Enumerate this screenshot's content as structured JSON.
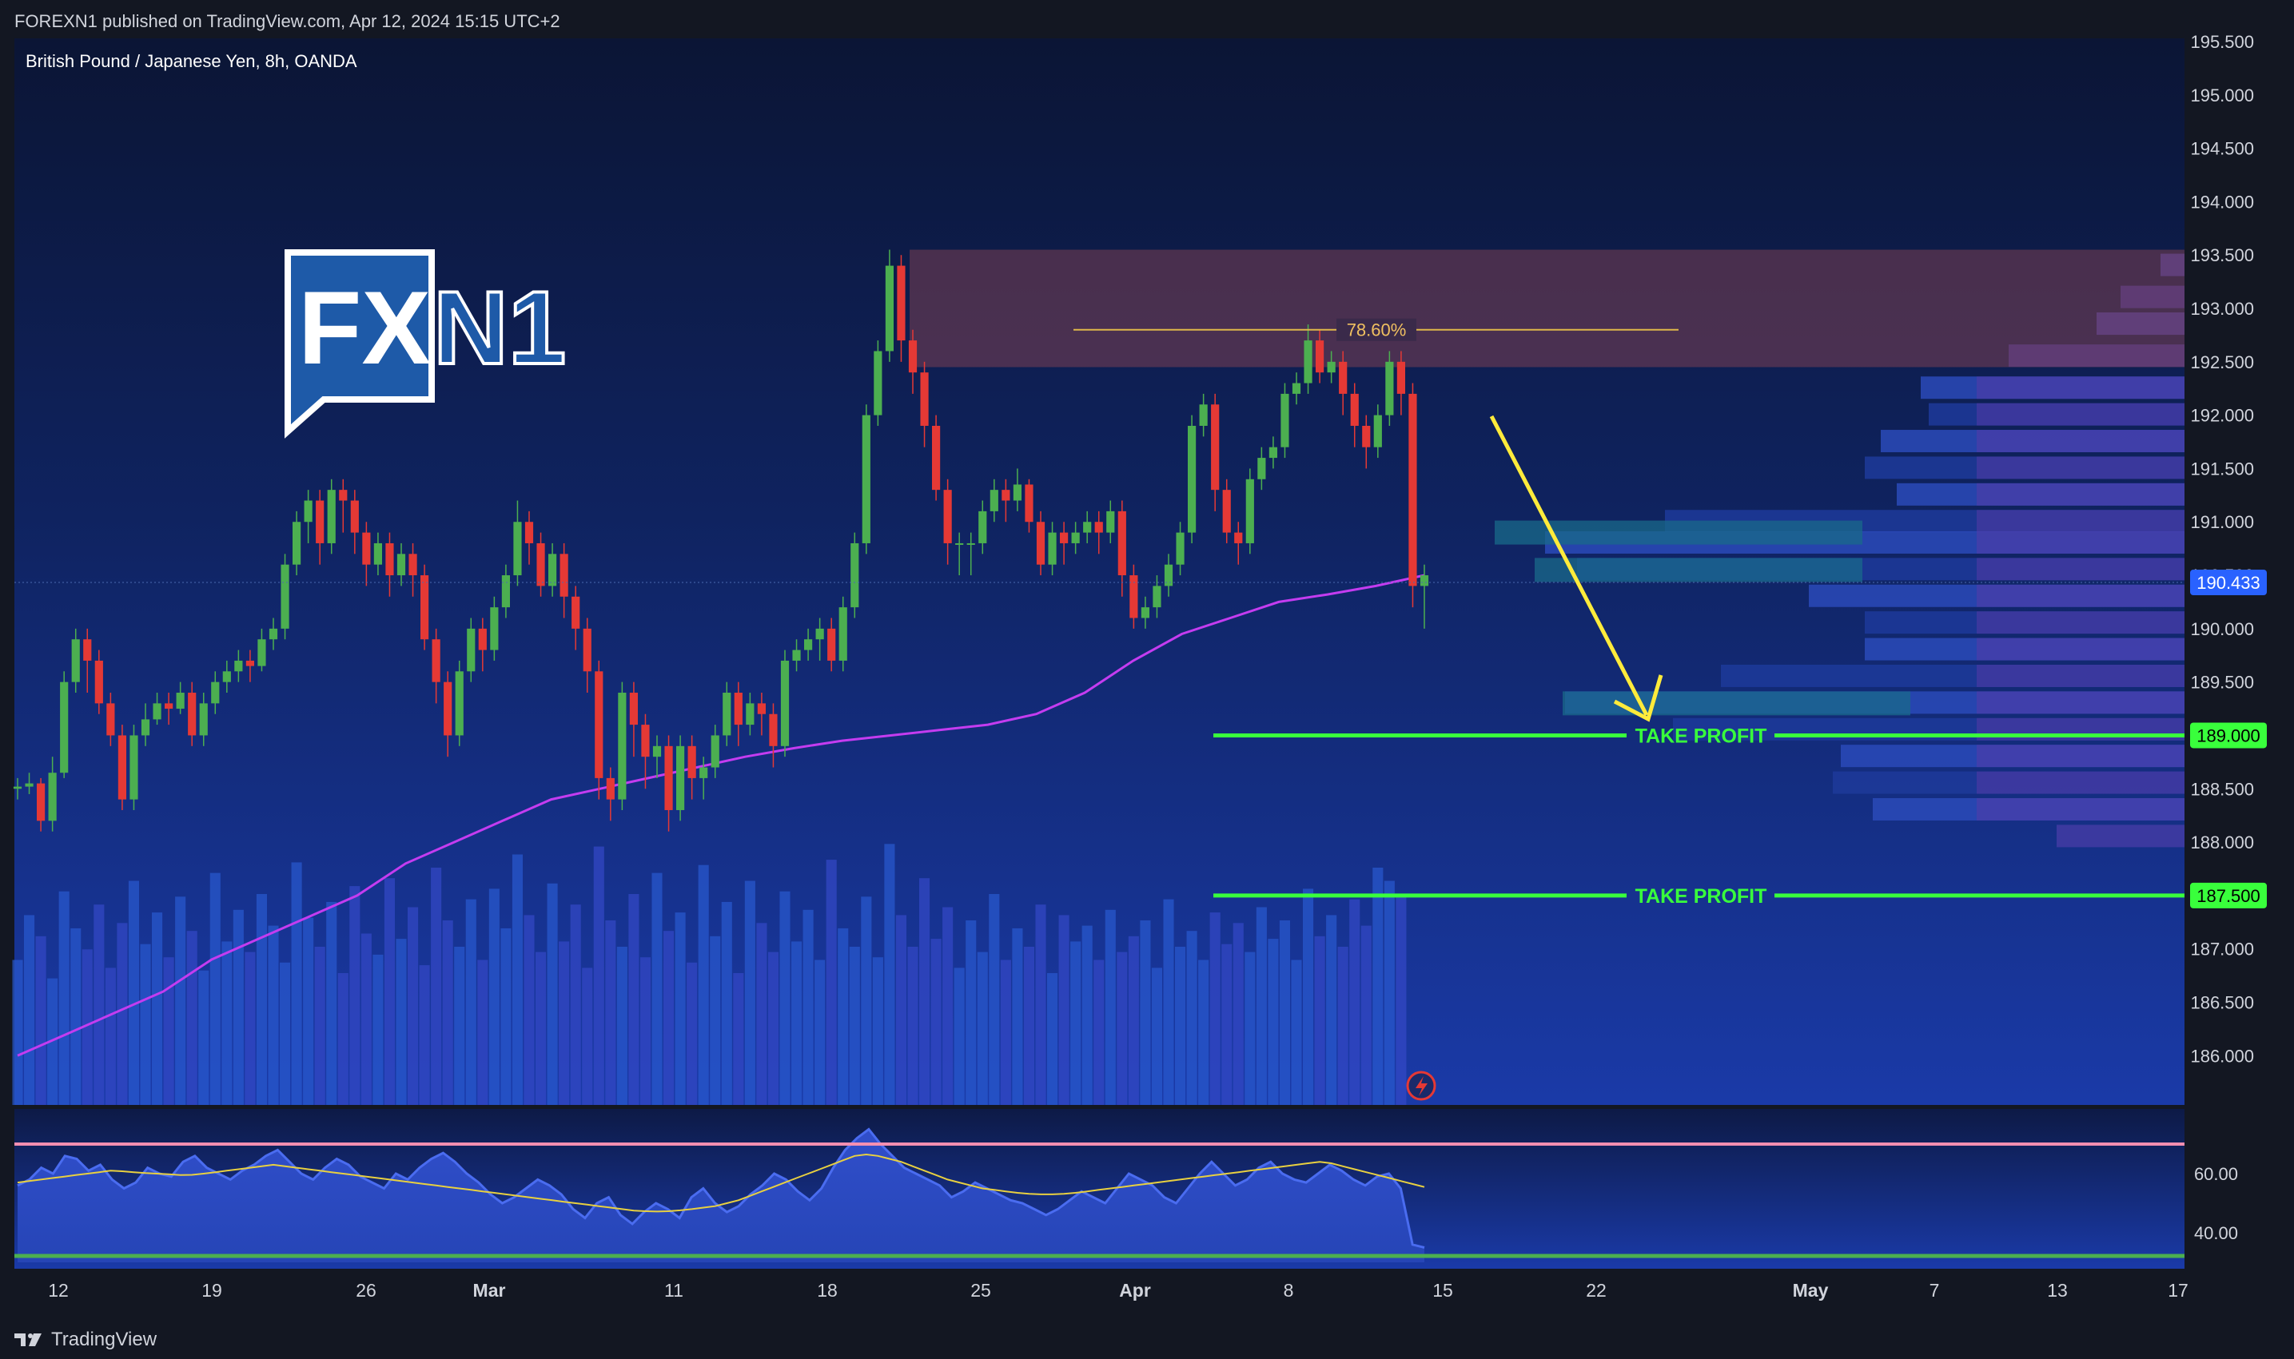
{
  "header": {
    "published": "FOREXN1 published on TradingView.com, Apr 12, 2024 15:15 UTC+2",
    "symbol": "British Pound / Japanese Yen, 8h, OANDA"
  },
  "footer": {
    "brand": "TradingView"
  },
  "logo": {
    "text_fx": "FX",
    "text_n1": "N1"
  },
  "colors": {
    "bull": "#4caf50",
    "bear": "#e53935",
    "ma": "#c43cf0",
    "tp": "#39ff3c",
    "arrow": "#ffeb3b",
    "zone": "#7b3f52",
    "rsi_upper": "#f48fb1",
    "rsi_lower": "#4caf50",
    "price_tag": "#2962ff"
  },
  "chart_data": [
    {
      "type": "candlestick",
      "yticks": [
        "195.500",
        "195.000",
        "194.500",
        "194.000",
        "193.500",
        "193.000",
        "192.500",
        "192.000",
        "191.500",
        "191.000",
        "190.500",
        "190.000",
        "189.500",
        "189.000",
        "188.500",
        "188.000",
        "187.500",
        "187.000",
        "186.500",
        "186.000"
      ],
      "ylim": [
        185.8,
        195.5
      ],
      "xticks": [
        "12",
        "19",
        "26",
        "Mar",
        "11",
        "18",
        "25",
        "Apr",
        "8",
        "15",
        "22",
        "May",
        "7",
        "13",
        "17"
      ],
      "current_price": "190.433",
      "fib_label": "78.60%",
      "fib_level": 192.8,
      "supply_zone": [
        192.45,
        193.55
      ],
      "take_profit": [
        {
          "label": "TAKE PROFIT",
          "price": "189.000",
          "value": 189.0
        },
        {
          "label": "TAKE PROFIT",
          "price": "187.500",
          "value": 187.5
        }
      ],
      "candles": [
        [
          188.5,
          188.52,
          188.4,
          188.6
        ],
        [
          188.52,
          188.55,
          188.45,
          188.65
        ],
        [
          188.55,
          188.2,
          188.1,
          188.6
        ],
        [
          188.2,
          188.65,
          188.1,
          188.8
        ],
        [
          188.65,
          189.5,
          188.6,
          189.6
        ],
        [
          189.5,
          189.9,
          189.4,
          190.0
        ],
        [
          189.9,
          189.7,
          189.4,
          190.0
        ],
        [
          189.7,
          189.3,
          189.2,
          189.8
        ],
        [
          189.3,
          189.0,
          188.9,
          189.4
        ],
        [
          189.0,
          188.4,
          188.3,
          189.1
        ],
        [
          188.4,
          189.0,
          188.3,
          189.1
        ],
        [
          189.0,
          189.15,
          188.9,
          189.3
        ],
        [
          189.15,
          189.3,
          189.1,
          189.4
        ],
        [
          189.3,
          189.25,
          189.1,
          189.4
        ],
        [
          189.25,
          189.4,
          189.2,
          189.5
        ],
        [
          189.4,
          189.0,
          188.9,
          189.5
        ],
        [
          189.0,
          189.3,
          188.9,
          189.4
        ],
        [
          189.3,
          189.5,
          189.2,
          189.6
        ],
        [
          189.5,
          189.6,
          189.4,
          189.7
        ],
        [
          189.6,
          189.7,
          189.5,
          189.8
        ],
        [
          189.7,
          189.65,
          189.5,
          189.8
        ],
        [
          189.65,
          189.9,
          189.6,
          190.0
        ],
        [
          189.9,
          190.0,
          189.8,
          190.1
        ],
        [
          190.0,
          190.6,
          189.9,
          190.7
        ],
        [
          190.6,
          191.0,
          190.5,
          191.1
        ],
        [
          191.0,
          191.2,
          190.8,
          191.3
        ],
        [
          191.2,
          190.8,
          190.6,
          191.3
        ],
        [
          190.8,
          191.3,
          190.7,
          191.4
        ],
        [
          191.3,
          191.2,
          190.9,
          191.4
        ],
        [
          191.2,
          190.9,
          190.7,
          191.3
        ],
        [
          190.9,
          190.6,
          190.4,
          191.0
        ],
        [
          190.6,
          190.8,
          190.5,
          190.9
        ],
        [
          190.8,
          190.5,
          190.3,
          190.9
        ],
        [
          190.5,
          190.7,
          190.4,
          190.8
        ],
        [
          190.7,
          190.5,
          190.3,
          190.8
        ],
        [
          190.5,
          189.9,
          189.8,
          190.6
        ],
        [
          189.9,
          189.5,
          189.3,
          190.0
        ],
        [
          189.5,
          189.0,
          188.8,
          189.6
        ],
        [
          189.0,
          189.6,
          188.9,
          189.7
        ],
        [
          189.6,
          190.0,
          189.5,
          190.1
        ],
        [
          190.0,
          189.8,
          189.6,
          190.1
        ],
        [
          189.8,
          190.2,
          189.7,
          190.3
        ],
        [
          190.2,
          190.5,
          190.1,
          190.6
        ],
        [
          190.5,
          191.0,
          190.4,
          191.2
        ],
        [
          191.0,
          190.8,
          190.6,
          191.1
        ],
        [
          190.8,
          190.4,
          190.3,
          190.9
        ],
        [
          190.4,
          190.7,
          190.3,
          190.8
        ],
        [
          190.7,
          190.3,
          190.1,
          190.8
        ],
        [
          190.3,
          190.0,
          189.8,
          190.4
        ],
        [
          190.0,
          189.6,
          189.4,
          190.1
        ],
        [
          189.6,
          188.6,
          188.4,
          189.7
        ],
        [
          188.6,
          188.4,
          188.2,
          188.7
        ],
        [
          188.4,
          189.4,
          188.3,
          189.5
        ],
        [
          189.4,
          189.1,
          188.8,
          189.5
        ],
        [
          189.1,
          188.8,
          188.5,
          189.2
        ],
        [
          188.8,
          188.9,
          188.6,
          189.0
        ],
        [
          188.9,
          188.3,
          188.1,
          189.0
        ],
        [
          188.3,
          188.9,
          188.2,
          189.0
        ],
        [
          188.9,
          188.6,
          188.4,
          189.0
        ],
        [
          188.6,
          188.7,
          188.4,
          188.8
        ],
        [
          188.7,
          189.0,
          188.6,
          189.1
        ],
        [
          189.0,
          189.4,
          188.9,
          189.5
        ],
        [
          189.4,
          189.1,
          188.9,
          189.5
        ],
        [
          189.1,
          189.3,
          189.0,
          189.4
        ],
        [
          189.3,
          189.2,
          189.0,
          189.4
        ],
        [
          189.2,
          188.9,
          188.7,
          189.3
        ],
        [
          188.9,
          189.7,
          188.8,
          189.8
        ],
        [
          189.7,
          189.8,
          189.6,
          189.9
        ],
        [
          189.8,
          189.9,
          189.7,
          190.0
        ],
        [
          189.9,
          190.0,
          189.7,
          190.1
        ],
        [
          190.0,
          189.7,
          189.6,
          190.1
        ],
        [
          189.7,
          190.2,
          189.6,
          190.3
        ],
        [
          190.2,
          190.8,
          190.1,
          190.9
        ],
        [
          190.8,
          192.0,
          190.7,
          192.1
        ],
        [
          192.0,
          192.6,
          191.9,
          192.7
        ],
        [
          192.6,
          193.4,
          192.5,
          193.55
        ],
        [
          193.4,
          192.7,
          192.5,
          193.5
        ],
        [
          192.7,
          192.4,
          192.2,
          192.8
        ],
        [
          192.4,
          191.9,
          191.7,
          192.5
        ],
        [
          191.9,
          191.3,
          191.2,
          192.0
        ],
        [
          191.3,
          190.8,
          190.6,
          191.4
        ],
        [
          190.8,
          190.8,
          190.5,
          190.9
        ],
        [
          190.8,
          190.8,
          190.5,
          190.9
        ],
        [
          190.8,
          191.1,
          190.7,
          191.2
        ],
        [
          191.1,
          191.3,
          191.0,
          191.4
        ],
        [
          191.3,
          191.2,
          191.0,
          191.4
        ],
        [
          191.2,
          191.35,
          191.1,
          191.5
        ],
        [
          191.35,
          191.0,
          190.9,
          191.4
        ],
        [
          191.0,
          190.6,
          190.5,
          191.1
        ],
        [
          190.6,
          190.9,
          190.5,
          191.0
        ],
        [
          190.9,
          190.8,
          190.6,
          191.0
        ],
        [
          190.8,
          190.9,
          190.7,
          191.0
        ],
        [
          190.9,
          191.0,
          190.8,
          191.1
        ],
        [
          191.0,
          190.9,
          190.7,
          191.1
        ],
        [
          190.9,
          191.1,
          190.8,
          191.2
        ],
        [
          191.1,
          190.5,
          190.3,
          191.2
        ],
        [
          190.5,
          190.1,
          190.0,
          190.6
        ],
        [
          190.1,
          190.2,
          190.0,
          190.3
        ],
        [
          190.2,
          190.4,
          190.1,
          190.5
        ],
        [
          190.4,
          190.6,
          190.3,
          190.7
        ],
        [
          190.6,
          190.9,
          190.5,
          191.0
        ],
        [
          190.9,
          191.9,
          190.8,
          192.0
        ],
        [
          191.9,
          192.1,
          191.8,
          192.2
        ],
        [
          192.1,
          191.3,
          191.1,
          192.2
        ],
        [
          191.3,
          190.9,
          190.8,
          191.4
        ],
        [
          190.9,
          190.8,
          190.6,
          191.0
        ],
        [
          190.8,
          191.4,
          190.7,
          191.5
        ],
        [
          191.4,
          191.6,
          191.3,
          191.7
        ],
        [
          191.6,
          191.7,
          191.5,
          191.8
        ],
        [
          191.7,
          192.2,
          191.6,
          192.3
        ],
        [
          192.2,
          192.3,
          192.1,
          192.4
        ],
        [
          192.3,
          192.7,
          192.2,
          192.85
        ],
        [
          192.7,
          192.4,
          192.3,
          192.8
        ],
        [
          192.4,
          192.5,
          192.3,
          192.6
        ],
        [
          192.5,
          192.2,
          192.0,
          192.6
        ],
        [
          192.2,
          191.9,
          191.7,
          192.3
        ],
        [
          191.9,
          191.7,
          191.5,
          192.0
        ],
        [
          191.7,
          192.0,
          191.6,
          192.1
        ],
        [
          192.0,
          192.5,
          191.9,
          192.6
        ],
        [
          192.5,
          192.2,
          192.0,
          192.6
        ],
        [
          192.2,
          190.4,
          190.2,
          192.3
        ],
        [
          190.4,
          190.5,
          190.0,
          190.6
        ]
      ],
      "ma": [
        186.0,
        186.2,
        186.4,
        186.6,
        186.9,
        187.1,
        187.3,
        187.5,
        187.8,
        188.0,
        188.2,
        188.4,
        188.5,
        188.6,
        188.7,
        188.8,
        188.88,
        188.95,
        189.0,
        189.05,
        189.1,
        189.2,
        189.4,
        189.7,
        189.95,
        190.1,
        190.25,
        190.32,
        190.4,
        190.5
      ],
      "volume": [
        0.55,
        0.72,
        0.64,
        0.48,
        0.81,
        0.67,
        0.59,
        0.76,
        0.52,
        0.69,
        0.85,
        0.61,
        0.73,
        0.56,
        0.79,
        0.66,
        0.51,
        0.88,
        0.62,
        0.74,
        0.58,
        0.8,
        0.68,
        0.54,
        0.92,
        0.71,
        0.6,
        0.77,
        0.5,
        0.83,
        0.65,
        0.57,
        0.86,
        0.63,
        0.75,
        0.53,
        0.9,
        0.7,
        0.6,
        0.78,
        0.55,
        0.82,
        0.67,
        0.95,
        0.72,
        0.58,
        0.84,
        0.62,
        0.76,
        0.52,
        0.98,
        0.7,
        0.6,
        0.8,
        0.56,
        0.88,
        0.66,
        0.73,
        0.54,
        0.91,
        0.64,
        0.77,
        0.5,
        0.85,
        0.69,
        0.58,
        0.81,
        0.62,
        0.74,
        0.55,
        0.93,
        0.67,
        0.6,
        0.79,
        0.56,
        0.99,
        0.72,
        0.6,
        0.86,
        0.63,
        0.75,
        0.52,
        0.7,
        0.58,
        0.8,
        0.55,
        0.67,
        0.6,
        0.76,
        0.5,
        0.72,
        0.62,
        0.68,
        0.55,
        0.74,
        0.58,
        0.64,
        0.7,
        0.52,
        0.78,
        0.6,
        0.66,
        0.55,
        0.73,
        0.61,
        0.69,
        0.58,
        0.75,
        0.63,
        0.7,
        0.55,
        0.82,
        0.64,
        0.72,
        0.6,
        0.78,
        0.68,
        0.9,
        0.85,
        0.8
      ]
    },
    {
      "type": "line",
      "name": "RSI",
      "yticks": [
        "60.00",
        "40.00"
      ],
      "ylim": [
        30,
        80
      ],
      "upper": 70,
      "lower": 30,
      "values": [
        56,
        58,
        62,
        60,
        66,
        65,
        61,
        63,
        58,
        55,
        57,
        62,
        60,
        59,
        64,
        66,
        62,
        60,
        58,
        61,
        63,
        66,
        68,
        64,
        60,
        58,
        62,
        65,
        63,
        59,
        57,
        55,
        60,
        58,
        62,
        65,
        67,
        64,
        60,
        57,
        53,
        50,
        52,
        55,
        58,
        56,
        53,
        48,
        45,
        50,
        52,
        46,
        43,
        47,
        50,
        48,
        45,
        52,
        55,
        50,
        47,
        49,
        53,
        56,
        60,
        58,
        54,
        51,
        55,
        62,
        68,
        72,
        75,
        70,
        66,
        62,
        60,
        58,
        56,
        52,
        54,
        57,
        55,
        53,
        51,
        50,
        48,
        46,
        48,
        51,
        54,
        52,
        50,
        55,
        60,
        58,
        56,
        52,
        50,
        55,
        60,
        64,
        60,
        56,
        58,
        62,
        64,
        60,
        58,
        57,
        60,
        63,
        61,
        58,
        56,
        59,
        60,
        55,
        36,
        35
      ],
      "ma": [
        57,
        57.5,
        58,
        58.5,
        59,
        59.5,
        60,
        60.5,
        61,
        60.8,
        60.5,
        60.2,
        60,
        59.8,
        59.5,
        59.6,
        60,
        60.5,
        61,
        61.5,
        62,
        62.5,
        63,
        62.5,
        62,
        61.5,
        61,
        60.5,
        60,
        59.5,
        59,
        58.5,
        58,
        57.5,
        57,
        56.5,
        56,
        55.5,
        55,
        54.5,
        54,
        53.5,
        53,
        52.5,
        52,
        51.5,
        51,
        50.5,
        50,
        49.5,
        49,
        48.5,
        48,
        47.5,
        47.3,
        47.2,
        47.3,
        47.6,
        48,
        48.5,
        49,
        50,
        51,
        52.5,
        54,
        55.5,
        57,
        58.5,
        60,
        61.5,
        63,
        64.5,
        66,
        66.5,
        66,
        65,
        64,
        62.5,
        61,
        59.5,
        58,
        57,
        56,
        55,
        54.5,
        54,
        53.5,
        53.2,
        53,
        53,
        53.2,
        53.5,
        54,
        54.5,
        55,
        55.5,
        56,
        56.5,
        57,
        57.5,
        58,
        58.5,
        59,
        59.5,
        60,
        60.5,
        61,
        61.5,
        62,
        62.5,
        63,
        63.5,
        64,
        63.5,
        62.5,
        61.5,
        60.5,
        59.5,
        58.5,
        57.5,
        56.5,
        55.5
      ]
    }
  ]
}
